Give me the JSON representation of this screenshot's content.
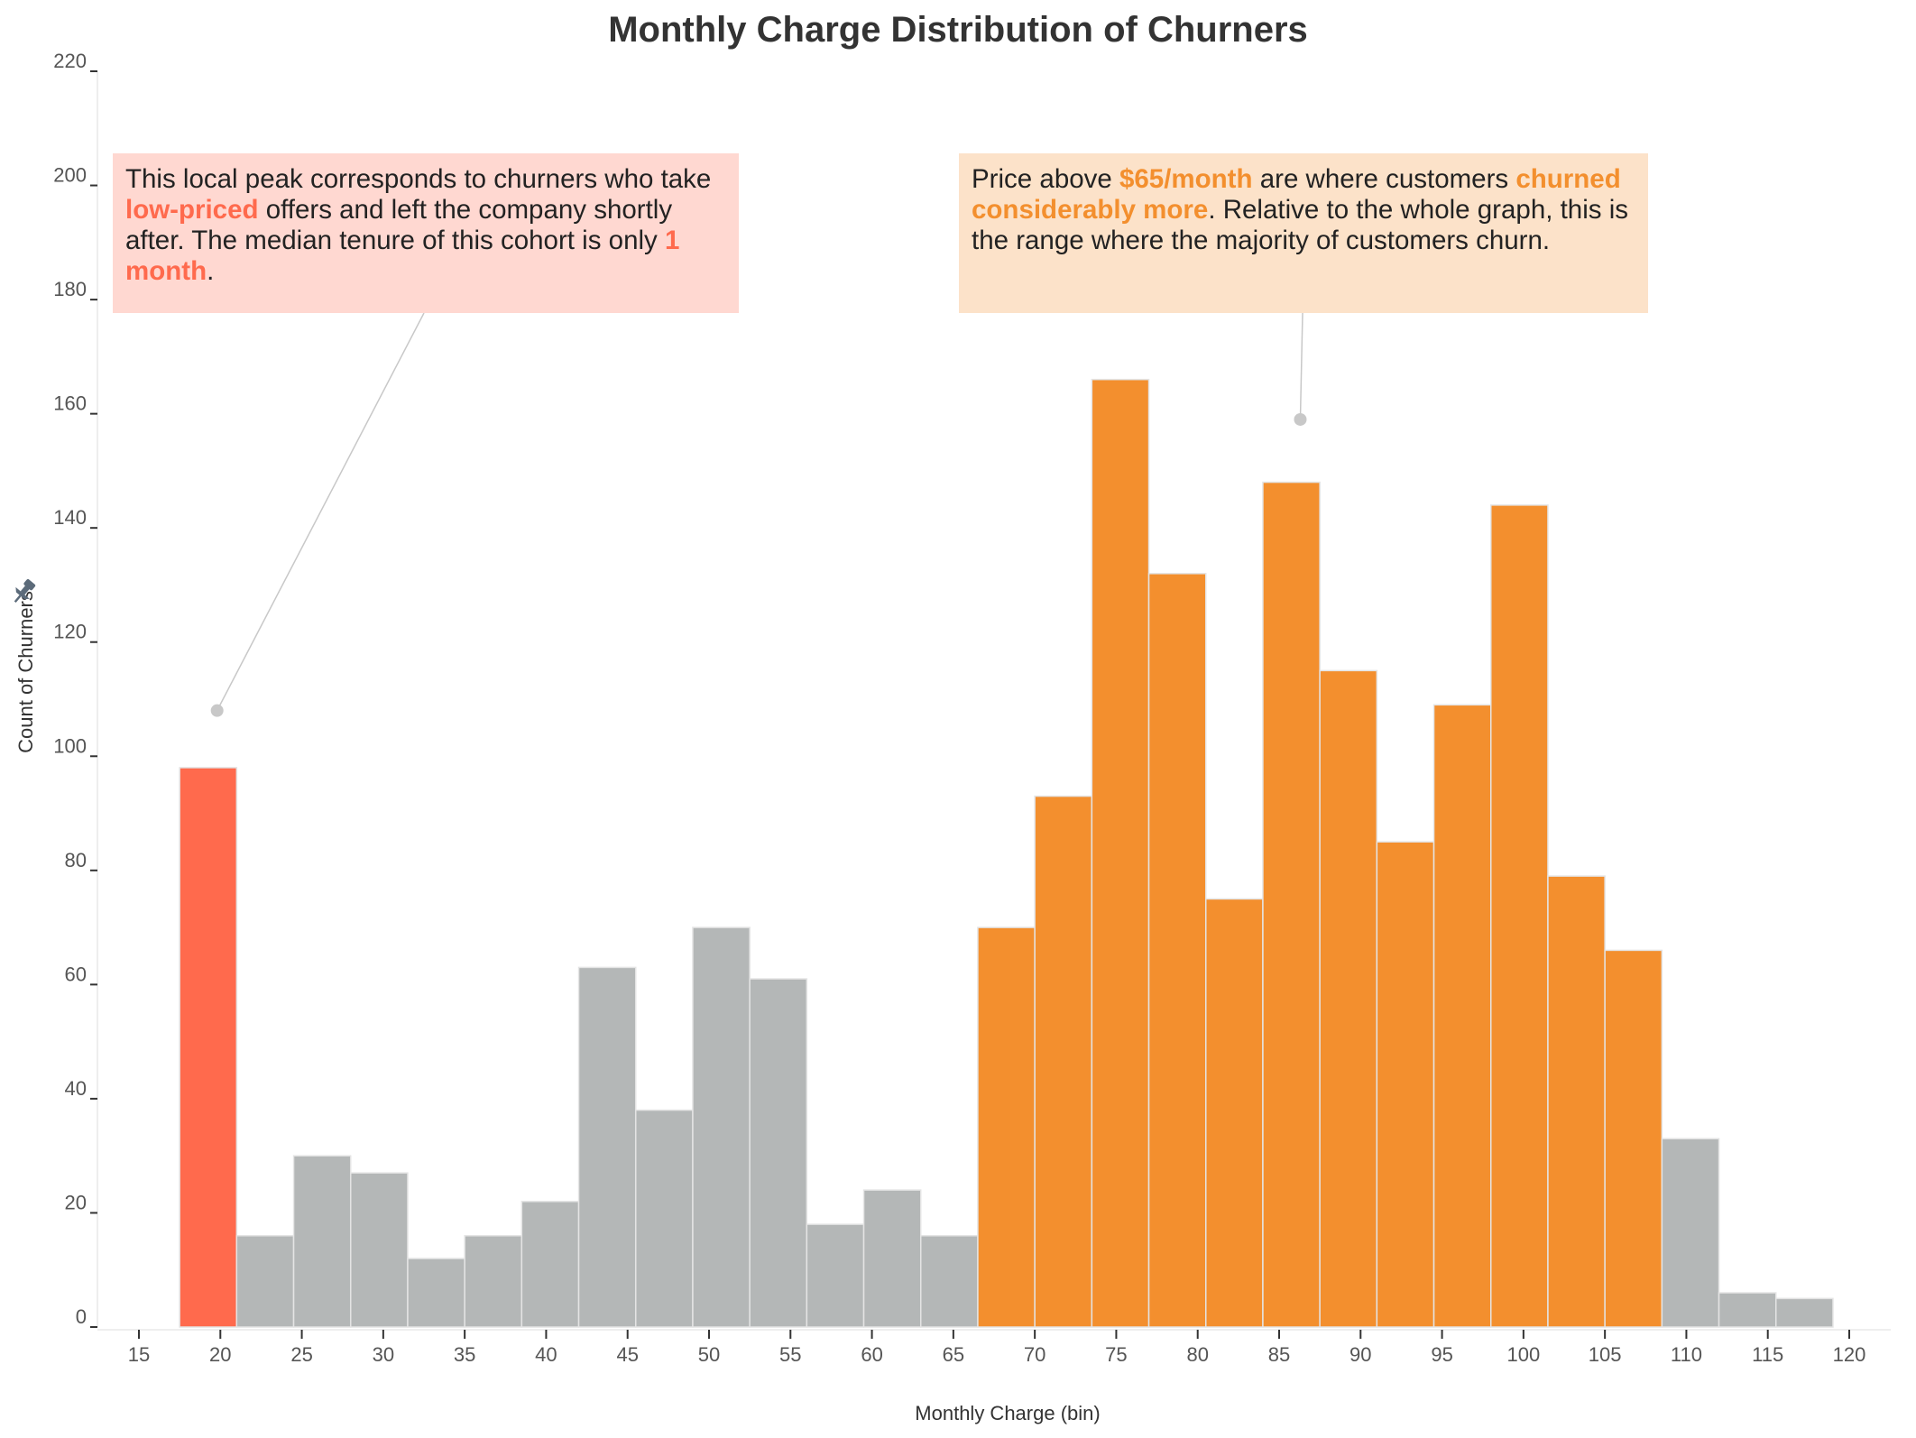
{
  "chart_data": {
    "type": "bar",
    "title": "Monthly Charge Distribution of Churners",
    "xlabel": "Monthly Charge (bin)",
    "ylabel": "Count of Churners",
    "xlim": [
      15,
      120
    ],
    "ylim": [
      0,
      220
    ],
    "x_ticks": [
      "15",
      "20",
      "25",
      "30",
      "35",
      "40",
      "45",
      "50",
      "55",
      "60",
      "65",
      "70",
      "75",
      "80",
      "85",
      "90",
      "95",
      "100",
      "105",
      "110",
      "115",
      "120"
    ],
    "y_ticks": [
      "0",
      "20",
      "40",
      "60",
      "80",
      "100",
      "120",
      "140",
      "160",
      "180",
      "200",
      "220"
    ],
    "grid": false,
    "bin_width": 3.5,
    "bins": [
      {
        "x0": 17.5,
        "x1": 21.0,
        "count": 98,
        "group": "low"
      },
      {
        "x0": 21.0,
        "x1": 24.5,
        "count": 16,
        "group": "other"
      },
      {
        "x0": 24.5,
        "x1": 28.0,
        "count": 30,
        "group": "other"
      },
      {
        "x0": 28.0,
        "x1": 31.5,
        "count": 27,
        "group": "other"
      },
      {
        "x0": 31.5,
        "x1": 35.0,
        "count": 12,
        "group": "other"
      },
      {
        "x0": 35.0,
        "x1": 38.5,
        "count": 16,
        "group": "other"
      },
      {
        "x0": 38.5,
        "x1": 42.0,
        "count": 22,
        "group": "other"
      },
      {
        "x0": 42.0,
        "x1": 45.5,
        "count": 63,
        "group": "other"
      },
      {
        "x0": 45.5,
        "x1": 49.0,
        "count": 38,
        "group": "other"
      },
      {
        "x0": 49.0,
        "x1": 52.5,
        "count": 70,
        "group": "other"
      },
      {
        "x0": 52.5,
        "x1": 56.0,
        "count": 61,
        "group": "other"
      },
      {
        "x0": 56.0,
        "x1": 59.5,
        "count": 18,
        "group": "other"
      },
      {
        "x0": 59.5,
        "x1": 63.0,
        "count": 24,
        "group": "other"
      },
      {
        "x0": 63.0,
        "x1": 66.5,
        "count": 16,
        "group": "other"
      },
      {
        "x0": 66.5,
        "x1": 70.0,
        "count": 70,
        "group": "high"
      },
      {
        "x0": 70.0,
        "x1": 73.5,
        "count": 93,
        "group": "high"
      },
      {
        "x0": 73.5,
        "x1": 77.0,
        "count": 166,
        "group": "high"
      },
      {
        "x0": 77.0,
        "x1": 80.5,
        "count": 132,
        "group": "high"
      },
      {
        "x0": 80.5,
        "x1": 84.0,
        "count": 75,
        "group": "high"
      },
      {
        "x0": 84.0,
        "x1": 87.5,
        "count": 148,
        "group": "high"
      },
      {
        "x0": 87.5,
        "x1": 91.0,
        "count": 115,
        "group": "high"
      },
      {
        "x0": 91.0,
        "x1": 94.5,
        "count": 85,
        "group": "high"
      },
      {
        "x0": 94.5,
        "x1": 98.0,
        "count": 109,
        "group": "high"
      },
      {
        "x0": 98.0,
        "x1": 101.5,
        "count": 144,
        "group": "high"
      },
      {
        "x0": 101.5,
        "x1": 105.0,
        "count": 79,
        "group": "high"
      },
      {
        "x0": 105.0,
        "x1": 108.5,
        "count": 66,
        "group": "high"
      },
      {
        "x0": 108.5,
        "x1": 112.0,
        "count": 33,
        "group": "other"
      },
      {
        "x0": 112.0,
        "x1": 115.5,
        "count": 6,
        "group": "other"
      },
      {
        "x0": 115.5,
        "x1": 119.0,
        "count": 5,
        "group": "other"
      }
    ],
    "colors": {
      "low": "#ff6a4d",
      "high": "#f38f2e",
      "other": "#b4b7b7",
      "bar_stroke": "#e4e4e4",
      "axis": "#333333",
      "leader": "#c8c8c8"
    },
    "annotations": [
      {
        "id": "low",
        "box_bg": "#ffd8d1",
        "highlight_color": "#ff6a4d",
        "point": {
          "x": 19.8,
          "y": 108
        },
        "parts": [
          {
            "t": "This local peak corresponds to churners who take ",
            "hl": false
          },
          {
            "t": "low-priced",
            "hl": true
          },
          {
            "t": " offers and left the company shortly after. The median tenure of this cohort is only ",
            "hl": false
          },
          {
            "t": "1 month",
            "hl": true
          },
          {
            "t": ".",
            "hl": false
          }
        ]
      },
      {
        "id": "high",
        "box_bg": "#fce2c9",
        "highlight_color": "#f38f2e",
        "point": {
          "x": 86.3,
          "y": 159
        },
        "parts": [
          {
            "t": "Price above ",
            "hl": false
          },
          {
            "t": "$65/month",
            "hl": true
          },
          {
            "t": " are where customers ",
            "hl": false
          },
          {
            "t": "churned considerably more",
            "hl": true
          },
          {
            "t": ". Relative to the whole graph, this is the range where the majority of customers churn.",
            "hl": false
          }
        ]
      }
    ]
  }
}
